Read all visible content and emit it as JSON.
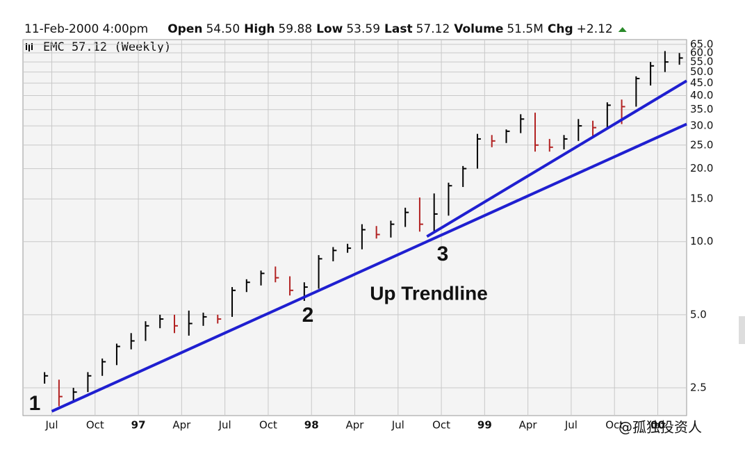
{
  "header": {
    "date": "11-Feb-2000 4:00pm",
    "items": [
      {
        "label": "Open",
        "value": "54.50"
      },
      {
        "label": "High",
        "value": "59.88"
      },
      {
        "label": "Low",
        "value": "53.59"
      },
      {
        "label": "Last",
        "value": "57.12"
      },
      {
        "label": "Volume",
        "value": "51.5M"
      },
      {
        "label": "Chg",
        "value": "+2.12"
      }
    ]
  },
  "watermark": "@孤独投资人",
  "chart_data": {
    "type": "ohlc",
    "legend": "EMC 57.12 (Weekly)",
    "log_scale": true,
    "grid": true,
    "up_color": "#000000",
    "down_color": "#b22222",
    "trendline_color": "#1f1fd0",
    "x": [
      "1996-06",
      "1996-07",
      "1996-08",
      "1996-09",
      "1996-10",
      "1996-11",
      "1996-12",
      "1997-01",
      "1997-02",
      "1997-03",
      "1997-04",
      "1997-05",
      "1997-06",
      "1997-07",
      "1997-08",
      "1997-09",
      "1997-10",
      "1997-11",
      "1997-12",
      "1998-01",
      "1998-02",
      "1998-03",
      "1998-04",
      "1998-05",
      "1998-06",
      "1998-07",
      "1998-08",
      "1998-09",
      "1998-10",
      "1998-11",
      "1998-12",
      "1999-01",
      "1999-02",
      "1999-03",
      "1999-04",
      "1999-05",
      "1999-06",
      "1999-07",
      "1999-08",
      "1999-09",
      "1999-10",
      "1999-11",
      "1999-12",
      "2000-01",
      "2000-02"
    ],
    "high": [
      2.9,
      2.7,
      2.5,
      2.9,
      3.3,
      3.8,
      4.2,
      4.7,
      5.0,
      5.0,
      5.2,
      5.1,
      5.0,
      6.5,
      7.0,
      7.6,
      7.9,
      7.2,
      6.8,
      8.8,
      9.5,
      9.8,
      11.8,
      11.6,
      12.2,
      13.8,
      15.2,
      15.8,
      17.5,
      20.5,
      27.8,
      27.5,
      29.0,
      33.5,
      34.0,
      26.5,
      27.5,
      32.0,
      31.5,
      37.5,
      38.5,
      48.0,
      55.0,
      61.0,
      59.88
    ],
    "low": [
      2.6,
      2.1,
      2.2,
      2.4,
      2.8,
      3.1,
      3.6,
      3.9,
      4.4,
      4.2,
      4.1,
      4.5,
      4.6,
      4.9,
      6.2,
      6.6,
      6.8,
      6.0,
      5.7,
      6.4,
      8.3,
      9.0,
      9.3,
      10.3,
      10.4,
      11.5,
      11.0,
      10.9,
      12.8,
      16.8,
      20.0,
      24.5,
      25.5,
      28.0,
      23.5,
      23.5,
      24.0,
      26.0,
      27.0,
      29.0,
      30.5,
      36.0,
      44.0,
      50.0,
      53.59
    ],
    "close": [
      2.8,
      2.3,
      2.4,
      2.8,
      3.2,
      3.7,
      3.9,
      4.5,
      4.8,
      4.5,
      4.6,
      4.9,
      4.8,
      6.3,
      6.8,
      7.4,
      7.1,
      6.3,
      6.5,
      8.5,
      9.2,
      9.4,
      11.2,
      10.7,
      11.8,
      13.2,
      11.8,
      13.0,
      17.0,
      20.0,
      26.5,
      26.0,
      28.5,
      32.0,
      25.0,
      24.5,
      26.5,
      30.0,
      29.5,
      36.5,
      36.0,
      47.0,
      53.0,
      55.0,
      57.12
    ],
    "trendlines": [
      {
        "x": [
          "1996-07",
          "2000-03"
        ],
        "y": [
          2.0,
          30.5
        ]
      },
      {
        "x": [
          "1998-09",
          "2000-03"
        ],
        "y": [
          10.5,
          46
        ]
      }
    ],
    "annotations": [
      "1",
      "2",
      "3",
      "Up Trendline"
    ],
    "xlim": [
      "1996-05",
      "2000-03"
    ],
    "xticks": [
      {
        "value": "1996-07",
        "label": "Jul"
      },
      {
        "value": "1996-10",
        "label": "Oct"
      },
      {
        "value": "1997-01",
        "label": "97"
      },
      {
        "value": "1997-04",
        "label": "Apr"
      },
      {
        "value": "1997-07",
        "label": "Jul"
      },
      {
        "value": "1997-10",
        "label": "Oct"
      },
      {
        "value": "1998-01",
        "label": "98"
      },
      {
        "value": "1998-04",
        "label": "Apr"
      },
      {
        "value": "1998-07",
        "label": "Jul"
      },
      {
        "value": "1998-10",
        "label": "Oct"
      },
      {
        "value": "1999-01",
        "label": "99"
      },
      {
        "value": "1999-04",
        "label": "Apr"
      },
      {
        "value": "1999-07",
        "label": "Jul"
      },
      {
        "value": "1999-10",
        "label": "Oct"
      },
      {
        "value": "2000-01",
        "label": "00"
      }
    ],
    "ylim": [
      1.92,
      68
    ],
    "yticks": [
      2.5,
      {
        "value": 5,
        "label": "5.0"
      },
      {
        "value": 10,
        "label": "10.0"
      },
      {
        "value": 15,
        "label": "15.0"
      },
      {
        "value": 20,
        "label": "20.0"
      },
      {
        "value": 25,
        "label": "25.0"
      },
      {
        "value": 30,
        "label": "30.0"
      },
      {
        "value": 35,
        "label": "35.0"
      },
      {
        "value": 40,
        "label": "40.0"
      },
      {
        "value": 45,
        "label": "45.0"
      },
      {
        "value": 50,
        "label": "50.0"
      },
      {
        "value": 55,
        "label": "55.0"
      },
      {
        "value": 60,
        "label": "60.0"
      },
      {
        "value": 65,
        "label": "65.0"
      }
    ]
  }
}
